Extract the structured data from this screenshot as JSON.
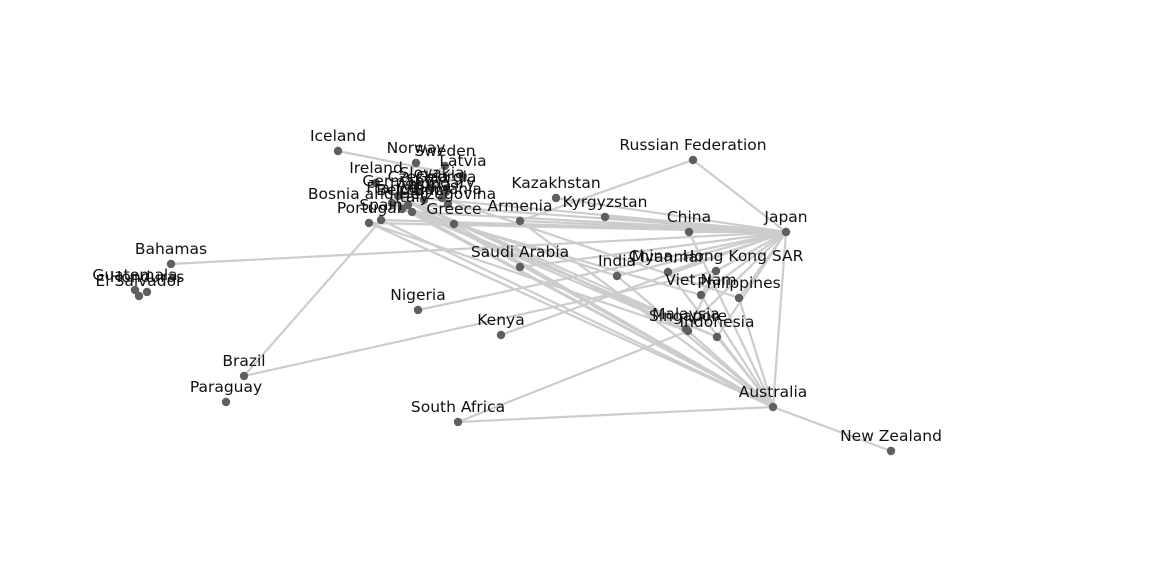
{
  "diagram": {
    "type": "network-graph",
    "colors": {
      "edge": "#cccccc",
      "node": "#5f5f5f",
      "label": "#111111",
      "background": "#ffffff"
    },
    "nodes": [
      {
        "id": "iceland",
        "label": "Iceland"
      },
      {
        "id": "norway",
        "label": "Norway"
      },
      {
        "id": "sweden",
        "label": "Sweden"
      },
      {
        "id": "latvia",
        "label": "Latvia"
      },
      {
        "id": "ireland",
        "label": "Ireland"
      },
      {
        "id": "germany",
        "label": "Germany"
      },
      {
        "id": "czechia",
        "label": "Czechia"
      },
      {
        "id": "slovakia",
        "label": "Slovakia"
      },
      {
        "id": "georgia",
        "label": "Georgia"
      },
      {
        "id": "austria",
        "label": "Austria"
      },
      {
        "id": "hungary",
        "label": "Hungary"
      },
      {
        "id": "belgium",
        "label": "Belgium"
      },
      {
        "id": "france",
        "label": "France"
      },
      {
        "id": "italy",
        "label": "Italy"
      },
      {
        "id": "romania",
        "label": "Romania"
      },
      {
        "id": "bosnia",
        "label": "Bosnia and Herzegovina"
      },
      {
        "id": "spain",
        "label": "Spain"
      },
      {
        "id": "portugal",
        "label": "Portugal"
      },
      {
        "id": "greece",
        "label": "Greece"
      },
      {
        "id": "armenia",
        "label": "Armenia"
      },
      {
        "id": "kazakhstan",
        "label": "Kazakhstan"
      },
      {
        "id": "kyrgyzstan",
        "label": "Kyrgyzstan"
      },
      {
        "id": "russia",
        "label": "Russian Federation"
      },
      {
        "id": "china",
        "label": "China"
      },
      {
        "id": "japan",
        "label": "Japan"
      },
      {
        "id": "hongkong",
        "label": "China, Hong Kong SAR"
      },
      {
        "id": "india",
        "label": "India"
      },
      {
        "id": "myanmar",
        "label": "Myanmar"
      },
      {
        "id": "vietnam",
        "label": "Viet Nam"
      },
      {
        "id": "philippines",
        "label": "Philippines"
      },
      {
        "id": "malaysia",
        "label": "Malaysia"
      },
      {
        "id": "singapore",
        "label": "Singapore"
      },
      {
        "id": "indonesia",
        "label": "Indonesia"
      },
      {
        "id": "saudi",
        "label": "Saudi Arabia"
      },
      {
        "id": "nigeria",
        "label": "Nigeria"
      },
      {
        "id": "kenya",
        "label": "Kenya"
      },
      {
        "id": "southafrica",
        "label": "South Africa"
      },
      {
        "id": "australia",
        "label": "Australia"
      },
      {
        "id": "newzealand",
        "label": "New Zealand"
      },
      {
        "id": "bahamas",
        "label": "Bahamas"
      },
      {
        "id": "guatemala",
        "label": "Guatemala"
      },
      {
        "id": "honduras",
        "label": "Honduras"
      },
      {
        "id": "elsalvador",
        "label": "El Salvador"
      },
      {
        "id": "brazil",
        "label": "Brazil"
      },
      {
        "id": "paraguay",
        "label": "Paraguay"
      }
    ],
    "edges": [
      [
        "iceland",
        "latvia"
      ],
      [
        "russia",
        "japan"
      ],
      [
        "russia",
        "armenia"
      ],
      [
        "kazakhstan",
        "japan"
      ],
      [
        "kyrgyzstan",
        "japan"
      ],
      [
        "china",
        "japan"
      ],
      [
        "bahamas",
        "japan"
      ],
      [
        "nigeria",
        "japan"
      ],
      [
        "brazil",
        "spain"
      ],
      [
        "brazil",
        "hongkong"
      ],
      [
        "saudi",
        "japan"
      ],
      [
        "kenya",
        "japan"
      ],
      [
        "southafrica",
        "australia"
      ],
      [
        "southafrica",
        "singapore"
      ],
      [
        "australia",
        "newzealand"
      ],
      [
        "australia",
        "japan"
      ],
      [
        "australia",
        "china"
      ],
      [
        "australia",
        "vietnam"
      ],
      [
        "australia",
        "philippines"
      ],
      [
        "australia",
        "malaysia"
      ],
      [
        "australia",
        "singapore"
      ],
      [
        "australia",
        "indonesia"
      ],
      [
        "australia",
        "india"
      ],
      [
        "australia",
        "myanmar"
      ],
      [
        "australia",
        "germany"
      ],
      [
        "australia",
        "france"
      ],
      [
        "australia",
        "ireland"
      ],
      [
        "australia",
        "spain"
      ],
      [
        "australia",
        "portugal"
      ],
      [
        "australia",
        "italy"
      ],
      [
        "australia",
        "greece"
      ],
      [
        "australia",
        "armenia"
      ],
      [
        "japan",
        "germany"
      ],
      [
        "japan",
        "france"
      ],
      [
        "japan",
        "italy"
      ],
      [
        "japan",
        "portugal"
      ],
      [
        "japan",
        "spain"
      ],
      [
        "japan",
        "greece"
      ],
      [
        "japan",
        "armenia"
      ],
      [
        "japan",
        "myanmar"
      ],
      [
        "japan",
        "india"
      ],
      [
        "japan",
        "vietnam"
      ],
      [
        "japan",
        "philippines"
      ],
      [
        "japan",
        "indonesia"
      ],
      [
        "japan",
        "malaysia"
      ],
      [
        "japan",
        "hongkong"
      ],
      [
        "hongkong",
        "singapore"
      ],
      [
        "hongkong",
        "vietnam"
      ],
      [
        "malaysia",
        "germany"
      ],
      [
        "malaysia",
        "italy"
      ],
      [
        "indonesia",
        "germany"
      ],
      [
        "indonesia",
        "france"
      ],
      [
        "singapore",
        "germany"
      ],
      [
        "singapore",
        "portugal"
      ],
      [
        "vietnam",
        "italy"
      ],
      [
        "philippines",
        "hungary"
      ],
      [
        "india",
        "france"
      ],
      [
        "ireland",
        "germany"
      ],
      [
        "sweden",
        "germany"
      ],
      [
        "norway",
        "germany"
      ],
      [
        "latvia",
        "germany"
      ]
    ]
  }
}
